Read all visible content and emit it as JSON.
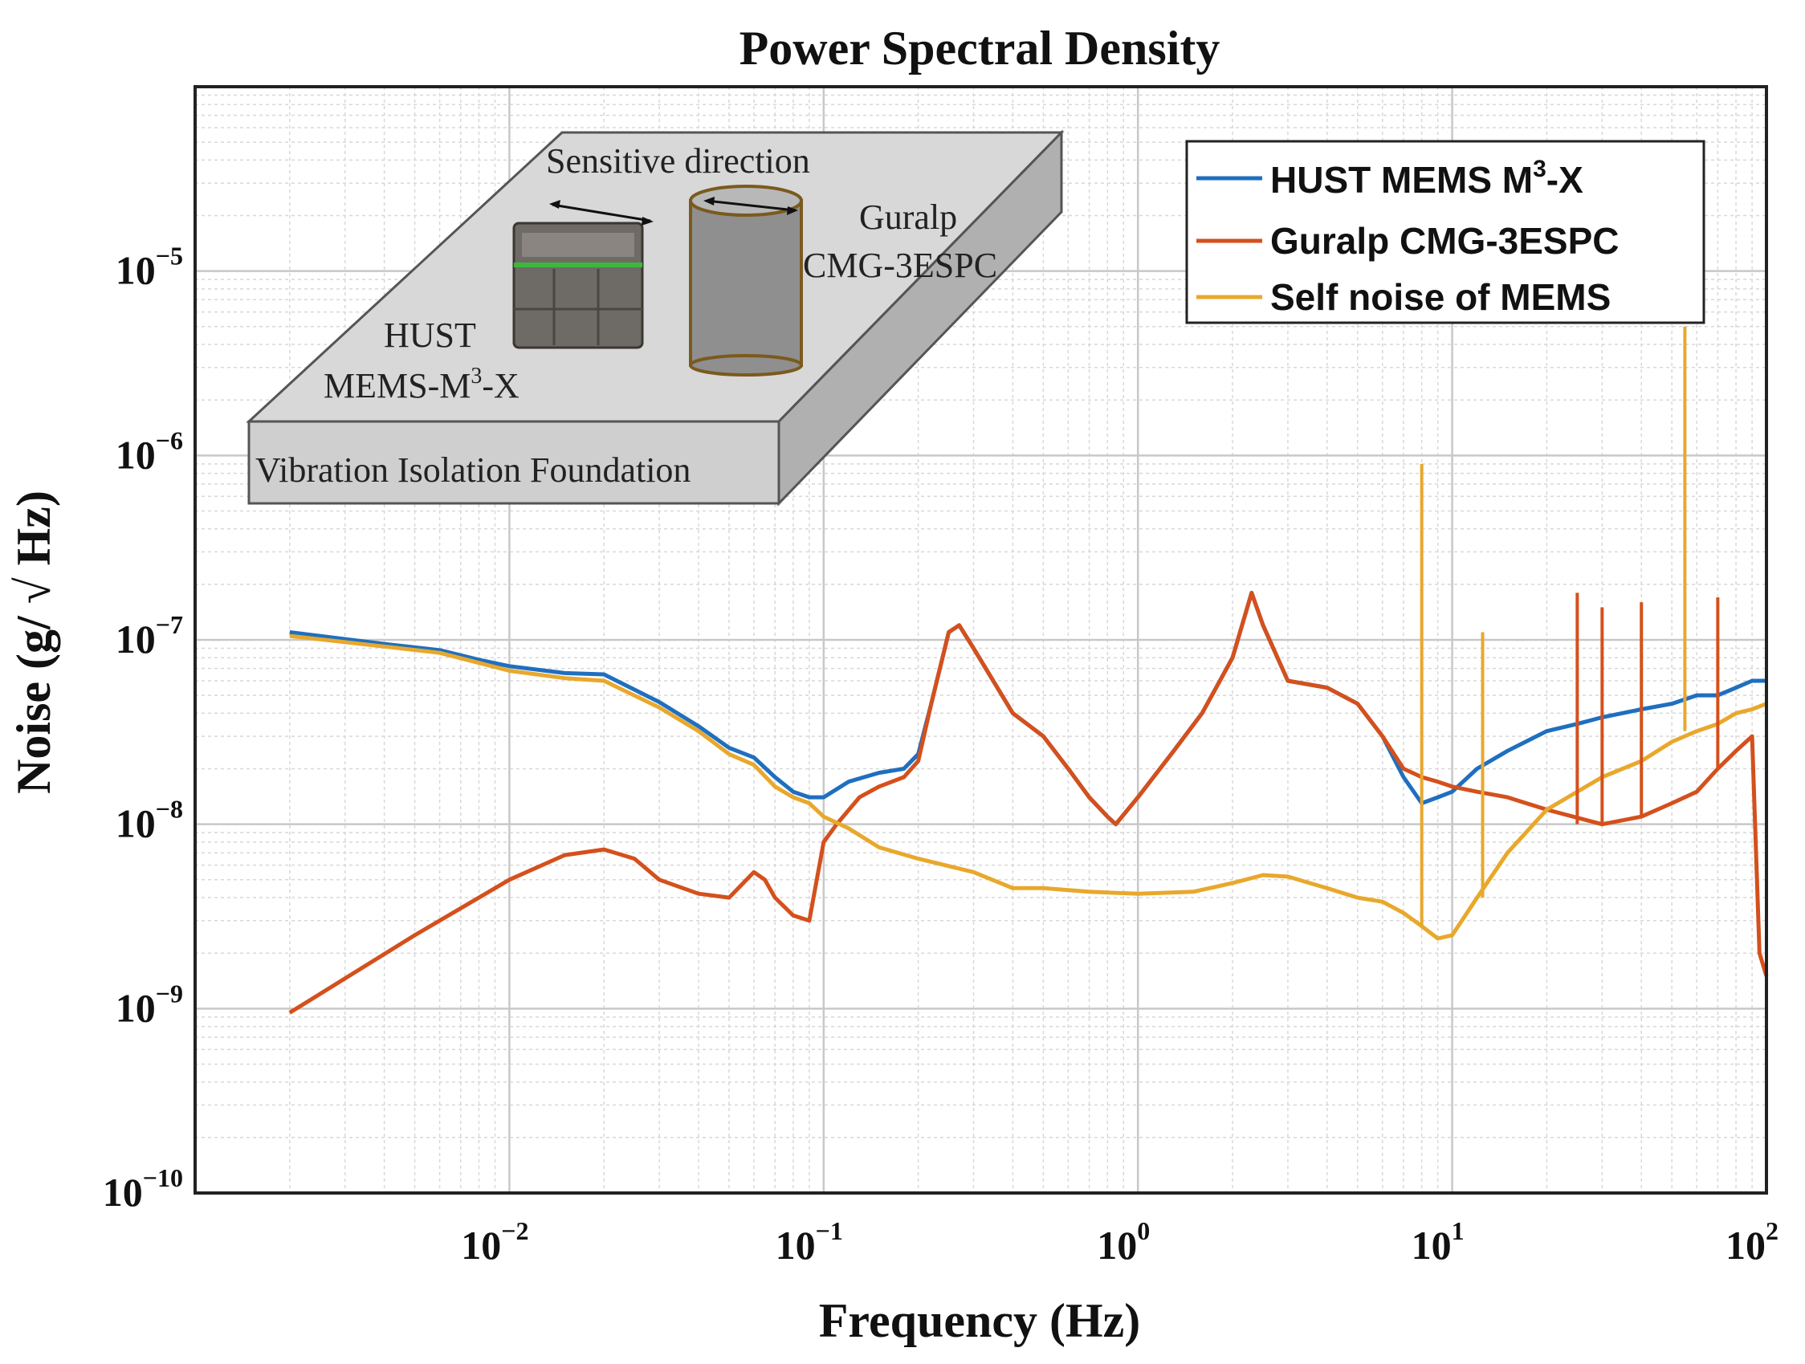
{
  "chart_data": {
    "type": "line",
    "title": "Power Spectral Density",
    "xlabel": "Frequency (Hz)",
    "ylabel": "Noise (g/ √ Hz)",
    "xscale": "log",
    "yscale": "log",
    "xlim": [
      0.001,
      100
    ],
    "ylim": [
      1e-10,
      0.0001
    ],
    "grid": true,
    "legend_position": "top-right",
    "x_ticks": [
      {
        "value": 0.01,
        "base": "10",
        "exp": "−2"
      },
      {
        "value": 0.1,
        "base": "10",
        "exp": "−1"
      },
      {
        "value": 1,
        "base": "10",
        "exp": "0"
      },
      {
        "value": 10,
        "base": "10",
        "exp": "1"
      },
      {
        "value": 100,
        "base": "10",
        "exp": "2"
      }
    ],
    "y_ticks": [
      {
        "value": 1e-10,
        "base": "10",
        "exp": "−10"
      },
      {
        "value": 1e-09,
        "base": "10",
        "exp": "−9"
      },
      {
        "value": 1e-08,
        "base": "10",
        "exp": "−8"
      },
      {
        "value": 1e-07,
        "base": "10",
        "exp": "−7"
      },
      {
        "value": 1e-06,
        "base": "10",
        "exp": "−6"
      },
      {
        "value": 1e-05,
        "base": "10",
        "exp": "−5"
      }
    ],
    "series": [
      {
        "name": "HUST MEMS M3-X",
        "legend_main": "HUST MEMS M",
        "legend_sup": "3",
        "legend_tail": "-X",
        "color": "#1f6fbf",
        "x": [
          0.002,
          0.004,
          0.006,
          0.008,
          0.01,
          0.015,
          0.02,
          0.03,
          0.04,
          0.05,
          0.06,
          0.07,
          0.08,
          0.09,
          0.1,
          0.12,
          0.15,
          0.18,
          0.2,
          0.22,
          0.25,
          0.27,
          0.3,
          0.4,
          0.5,
          0.6,
          0.7,
          0.8,
          0.85,
          1.0,
          1.3,
          1.6,
          2.0,
          2.3,
          2.5,
          3.0,
          4.0,
          5.0,
          6.0,
          7.0,
          8.0,
          9.0,
          10,
          12,
          15,
          20,
          25,
          30,
          40,
          50,
          60,
          70,
          80,
          90,
          100
        ],
        "values": [
          1.1e-07,
          9.5e-08,
          8.8e-08,
          7.8e-08,
          7.2e-08,
          6.6e-08,
          6.5e-08,
          4.6e-08,
          3.4e-08,
          2.6e-08,
          2.3e-08,
          1.8e-08,
          1.5e-08,
          1.4e-08,
          1.4e-08,
          1.7e-08,
          1.9e-08,
          2e-08,
          2.4e-08,
          4.5e-08,
          1.1e-07,
          1.2e-07,
          9e-08,
          4e-08,
          3e-08,
          2e-08,
          1.4e-08,
          1.1e-08,
          1e-08,
          1.4e-08,
          2.5e-08,
          4e-08,
          8e-08,
          1.8e-07,
          1.2e-07,
          6e-08,
          5.5e-08,
          4.5e-08,
          3e-08,
          1.8e-08,
          1.3e-08,
          1.4e-08,
          1.5e-08,
          2e-08,
          2.5e-08,
          3.2e-08,
          3.5e-08,
          3.8e-08,
          4.2e-08,
          4.5e-08,
          5e-08,
          5e-08,
          5.5e-08,
          6e-08,
          6e-08
        ]
      },
      {
        "name": "Guralp CMG-3ESPC",
        "legend_main": "Guralp CMG-3ESPC",
        "legend_sup": "",
        "legend_tail": "",
        "color": "#d4501c",
        "x": [
          0.002,
          0.005,
          0.01,
          0.015,
          0.02,
          0.025,
          0.03,
          0.04,
          0.05,
          0.06,
          0.065,
          0.07,
          0.08,
          0.09,
          0.1,
          0.11,
          0.13,
          0.15,
          0.18,
          0.2,
          0.22,
          0.25,
          0.27,
          0.3,
          0.4,
          0.5,
          0.6,
          0.7,
          0.8,
          0.85,
          1.0,
          1.3,
          1.6,
          2.0,
          2.3,
          2.5,
          3.0,
          4.0,
          5.0,
          6.0,
          7.0,
          8.0,
          9.0,
          10,
          12,
          15,
          20,
          30,
          40,
          50,
          60,
          70,
          80,
          90,
          95,
          100
        ],
        "values": [
          9.5e-10,
          2.5e-09,
          5e-09,
          6.8e-09,
          7.3e-09,
          6.5e-09,
          5e-09,
          4.2e-09,
          4e-09,
          5.5e-09,
          5e-09,
          4e-09,
          3.2e-09,
          3e-09,
          8e-09,
          1e-08,
          1.4e-08,
          1.6e-08,
          1.8e-08,
          2.2e-08,
          4.5e-08,
          1.1e-07,
          1.2e-07,
          9e-08,
          4e-08,
          3e-08,
          2e-08,
          1.4e-08,
          1.1e-08,
          1e-08,
          1.4e-08,
          2.5e-08,
          4e-08,
          8e-08,
          1.8e-07,
          1.2e-07,
          6e-08,
          5.5e-08,
          4.5e-08,
          3e-08,
          2e-08,
          1.8e-08,
          1.7e-08,
          1.6e-08,
          1.5e-08,
          1.4e-08,
          1.2e-08,
          1e-08,
          1.1e-08,
          1.3e-08,
          1.5e-08,
          2e-08,
          2.5e-08,
          3e-08,
          2e-09,
          1.5e-09
        ]
      },
      {
        "name": "Self noise of MEMS",
        "legend_main": "Self noise of MEMS",
        "legend_sup": "",
        "legend_tail": "",
        "color": "#e8a82c",
        "x": [
          0.002,
          0.004,
          0.006,
          0.008,
          0.01,
          0.015,
          0.02,
          0.03,
          0.04,
          0.05,
          0.06,
          0.07,
          0.08,
          0.09,
          0.1,
          0.12,
          0.15,
          0.2,
          0.3,
          0.4,
          0.5,
          0.7,
          1.0,
          1.5,
          2.0,
          2.5,
          3.0,
          4.0,
          5.0,
          6.0,
          7.0,
          8.0,
          9.0,
          10,
          12,
          15,
          20,
          30,
          40,
          50,
          60,
          70,
          80,
          90,
          100
        ],
        "values": [
          1.05e-07,
          9.2e-08,
          8.5e-08,
          7.5e-08,
          6.8e-08,
          6.2e-08,
          6e-08,
          4.3e-08,
          3.2e-08,
          2.4e-08,
          2.1e-08,
          1.6e-08,
          1.4e-08,
          1.3e-08,
          1.1e-08,
          9.5e-09,
          7.5e-09,
          6.5e-09,
          5.5e-09,
          4.5e-09,
          4.5e-09,
          4.3e-09,
          4.2e-09,
          4.3e-09,
          4.8e-09,
          5.3e-09,
          5.2e-09,
          4.5e-09,
          4e-09,
          3.8e-09,
          3.3e-09,
          2.8e-09,
          2.4e-09,
          2.5e-09,
          4e-09,
          7e-09,
          1.2e-08,
          1.8e-08,
          2.2e-08,
          2.8e-08,
          3.2e-08,
          3.5e-08,
          4e-08,
          4.2e-08,
          4.5e-08
        ]
      }
    ],
    "spikes": [
      {
        "series": "Self noise of MEMS",
        "x": 8.0,
        "peak": 9e-07
      },
      {
        "series": "Self noise of MEMS",
        "x": 12.5,
        "peak": 1.1e-07
      },
      {
        "series": "Self noise of MEMS",
        "x": 55,
        "peak": 5e-06
      },
      {
        "series": "Guralp CMG-3ESPC",
        "x": 25,
        "peak": 1.8e-07
      },
      {
        "series": "Guralp CMG-3ESPC",
        "x": 30,
        "peak": 1.5e-07
      },
      {
        "series": "Guralp CMG-3ESPC",
        "x": 40,
        "peak": 1.6e-07
      },
      {
        "series": "Guralp CMG-3ESPC",
        "x": 70,
        "peak": 1.7e-07
      }
    ],
    "inset": {
      "sensitive_direction": "Sensitive direction",
      "guralp_line1": "Guralp",
      "guralp_line2": "CMG-3ESPC",
      "hust_line1": "HUST",
      "hust_line2_main": "MEMS-M",
      "hust_line2_sup": "3",
      "hust_line2_tail": "-X",
      "foundation": "Vibration Isolation Foundation"
    }
  }
}
